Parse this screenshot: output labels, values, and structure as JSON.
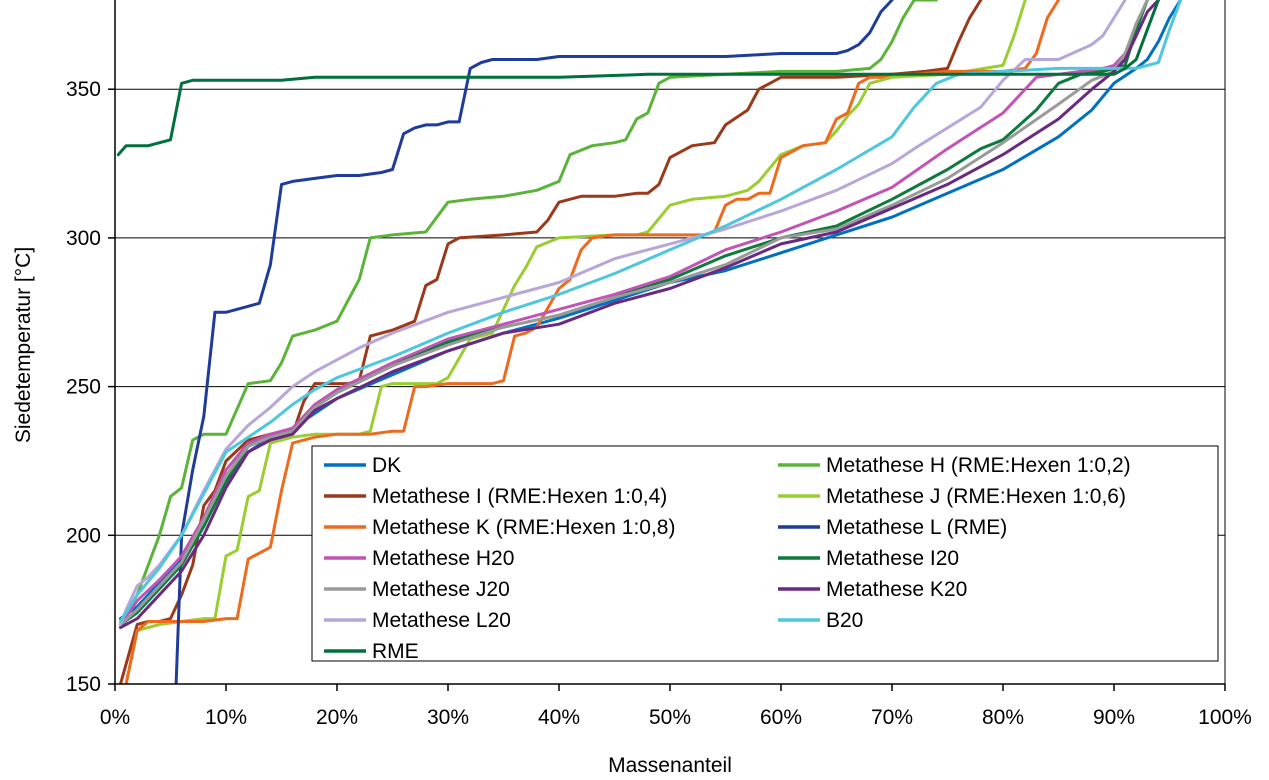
{
  "chart_data": {
    "type": "line",
    "title": "",
    "xlabel": "Massenanteil",
    "ylabel": "Siedetemperatur [°C]",
    "xlim": [
      0,
      100
    ],
    "ylim": [
      150,
      380
    ],
    "xticks": [
      0,
      10,
      20,
      30,
      40,
      50,
      60,
      70,
      80,
      90,
      100
    ],
    "xtick_labels": [
      "0%",
      "10%",
      "20%",
      "30%",
      "40%",
      "50%",
      "60%",
      "70%",
      "80%",
      "90%",
      "100%"
    ],
    "yticks": [
      150,
      200,
      250,
      300,
      350
    ],
    "ytick_labels": [
      "150",
      "200",
      "250",
      "300",
      "350"
    ],
    "grid": "horizontal",
    "legend_placement": "bottom-center",
    "series": [
      {
        "name": "DK",
        "color": "#0070c0",
        "x": [
          0.5,
          2,
          4,
          6,
          8,
          10,
          12,
          14,
          16,
          18,
          20,
          25,
          30,
          35,
          40,
          45,
          50,
          55,
          60,
          65,
          70,
          75,
          80,
          85,
          88,
          90,
          92,
          93,
          94,
          95,
          96
        ],
        "y": [
          172,
          176,
          184,
          192,
          204,
          218,
          228,
          233,
          236,
          241,
          246,
          254,
          262,
          268,
          273,
          279,
          285,
          289,
          295,
          301,
          307,
          315,
          323,
          334,
          343,
          352,
          357,
          360,
          366,
          374,
          380
        ]
      },
      {
        "name": "Metathese H (RME:Hexen 1:0,2)",
        "color": "#5bb33a",
        "x": [
          0.5,
          2,
          3,
          4,
          5,
          6,
          7,
          8,
          10,
          12,
          14,
          15,
          16,
          18,
          20,
          22,
          23,
          25,
          28,
          30,
          32,
          35,
          38,
          40,
          41,
          43,
          45,
          46,
          47,
          48,
          49,
          50,
          55,
          60,
          65,
          68,
          69,
          70,
          71,
          72,
          74
        ],
        "y": [
          170,
          180,
          190,
          200,
          213,
          216,
          232,
          234,
          234,
          251,
          252,
          258,
          267,
          269,
          272,
          286,
          300,
          301,
          302,
          312,
          313,
          314,
          316,
          319,
          328,
          331,
          332,
          333,
          340,
          342,
          352,
          354,
          355,
          356,
          356,
          357,
          360,
          366,
          374,
          380,
          380
        ]
      },
      {
        "name": "Metathese I (RME:Hexen 1:0,4)",
        "color": "#9a3a1a",
        "x": [
          0.5,
          2,
          3,
          4,
          5,
          6,
          7,
          8,
          9,
          10,
          12,
          14,
          16,
          17,
          18,
          20,
          21,
          22,
          23,
          25,
          27,
          28,
          29,
          30,
          31,
          35,
          38,
          39,
          40,
          42,
          45,
          47,
          48,
          49,
          50,
          52,
          54,
          55,
          57,
          58,
          59,
          60,
          65,
          70,
          73,
          75,
          76,
          77,
          78
        ],
        "y": [
          150,
          170,
          171,
          171,
          172,
          180,
          190,
          210,
          215,
          225,
          232,
          234,
          234,
          245,
          251,
          251,
          251,
          252,
          267,
          269,
          272,
          284,
          286,
          298,
          300,
          301,
          302,
          306,
          312,
          314,
          314,
          315,
          315,
          318,
          327,
          331,
          332,
          338,
          343,
          350,
          352,
          354,
          354,
          355,
          356,
          357,
          366,
          374,
          380
        ]
      },
      {
        "name": "Metathese J (RME:Hexen 1:0,6)",
        "color": "#9acd32",
        "x": [
          1,
          2,
          4,
          6,
          8,
          9,
          10,
          11,
          12,
          13,
          14,
          15,
          16,
          18,
          20,
          22,
          23,
          24,
          25,
          26,
          27,
          28,
          29,
          30,
          32,
          34,
          35,
          36,
          37,
          38,
          40,
          45,
          47,
          48,
          50,
          52,
          55,
          57,
          58,
          60,
          62,
          64,
          65,
          66,
          67,
          68,
          70,
          75,
          80,
          81,
          82
        ],
        "y": [
          150,
          168,
          170,
          171,
          172,
          172,
          193,
          195,
          213,
          215,
          231,
          232,
          233,
          234,
          234,
          234,
          235,
          250,
          251,
          251,
          251,
          251,
          251,
          253,
          266,
          268,
          276,
          284,
          290,
          297,
          300,
          301,
          301,
          302,
          311,
          313,
          314,
          316,
          319,
          328,
          331,
          332,
          336,
          341,
          345,
          352,
          354,
          355,
          358,
          368,
          380
        ]
      },
      {
        "name": "Metathese K (RME:Hexen 1:0,8)",
        "color": "#ee6a1e",
        "x": [
          1,
          2,
          3,
          5,
          8,
          10,
          11,
          12,
          14,
          15,
          16,
          18,
          20,
          23,
          25,
          26,
          27,
          28,
          30,
          32,
          34,
          35,
          36,
          37,
          38,
          40,
          41,
          42,
          43,
          45,
          48,
          50,
          53,
          54,
          55,
          56,
          57,
          58,
          59,
          60,
          62,
          64,
          65,
          66,
          67,
          68,
          69,
          70,
          72,
          75,
          80,
          82,
          83,
          84,
          85
        ],
        "y": [
          150,
          168,
          171,
          171,
          171,
          172,
          172,
          192,
          196,
          215,
          231,
          233,
          234,
          234,
          235,
          235,
          250,
          250,
          251,
          251,
          251,
          252,
          267,
          268,
          270,
          283,
          286,
          296,
          300,
          301,
          301,
          301,
          301,
          302,
          311,
          313,
          313,
          315,
          315,
          327,
          331,
          332,
          340,
          342,
          352,
          354,
          354,
          355,
          355,
          356,
          356,
          357,
          362,
          374,
          380
        ]
      },
      {
        "name": "Metathese L (RME)",
        "color": "#1f3c99",
        "x": [
          5.5,
          6,
          7,
          8,
          9,
          10,
          11,
          12,
          13,
          14,
          15,
          16,
          18,
          20,
          22,
          24,
          25,
          26,
          27,
          28,
          29,
          30,
          31,
          32,
          33,
          34,
          35,
          38,
          40,
          45,
          50,
          55,
          60,
          63,
          65,
          66,
          67,
          68,
          69,
          70
        ],
        "y": [
          150,
          200,
          222,
          240,
          275,
          275,
          276,
          277,
          278,
          291,
          318,
          319,
          320,
          321,
          321,
          322,
          323,
          335,
          337,
          338,
          338,
          339,
          339,
          357,
          359,
          360,
          360,
          360,
          361,
          361,
          361,
          361,
          362,
          362,
          362,
          363,
          365,
          369,
          376,
          380
        ]
      },
      {
        "name": "Metathese H20",
        "color": "#c154b4",
        "x": [
          0.5,
          2,
          4,
          6,
          8,
          10,
          12,
          14,
          16,
          18,
          20,
          25,
          30,
          35,
          40,
          45,
          50,
          55,
          60,
          65,
          70,
          75,
          80,
          83,
          85,
          87,
          89,
          90,
          91,
          92,
          93
        ],
        "y": [
          170,
          178,
          185,
          193,
          206,
          222,
          231,
          234,
          236,
          244,
          249,
          258,
          266,
          271,
          276,
          281,
          287,
          296,
          302,
          309,
          317,
          330,
          342,
          354,
          355,
          356,
          357,
          358,
          362,
          370,
          380
        ]
      },
      {
        "name": "Metathese I20",
        "color": "#0e7a3c",
        "x": [
          0.5,
          2,
          4,
          6,
          8,
          10,
          12,
          14,
          16,
          18,
          20,
          25,
          30,
          35,
          40,
          45,
          50,
          55,
          60,
          65,
          70,
          75,
          78,
          80,
          83,
          85,
          87,
          89,
          90,
          91,
          92,
          93
        ],
        "y": [
          170,
          174,
          182,
          190,
          203,
          218,
          230,
          233,
          235,
          243,
          248,
          257,
          265,
          270,
          274,
          280,
          286,
          294,
          300,
          304,
          313,
          323,
          330,
          333,
          343,
          352,
          355,
          356,
          357,
          358,
          370,
          380
        ]
      },
      {
        "name": "Metathese J20",
        "color": "#9a9a9a",
        "x": [
          0.5,
          2,
          4,
          6,
          8,
          10,
          12,
          14,
          16,
          18,
          20,
          25,
          30,
          35,
          40,
          45,
          50,
          55,
          60,
          65,
          70,
          75,
          80,
          85,
          88,
          90,
          91,
          92,
          93
        ],
        "y": [
          170,
          175,
          183,
          191,
          205,
          220,
          230,
          233,
          235,
          243,
          248,
          257,
          264,
          270,
          274,
          280,
          285,
          291,
          300,
          303,
          311,
          320,
          332,
          345,
          353,
          356,
          362,
          372,
          380
        ]
      },
      {
        "name": "Metathese K20",
        "color": "#6a2a80",
        "x": [
          0.5,
          2,
          4,
          6,
          8,
          10,
          12,
          14,
          16,
          18,
          20,
          25,
          30,
          35,
          40,
          45,
          50,
          55,
          60,
          65,
          70,
          75,
          80,
          85,
          88,
          90,
          91,
          92,
          93,
          94
        ],
        "y": [
          169,
          172,
          180,
          188,
          200,
          216,
          228,
          232,
          234,
          242,
          246,
          255,
          262,
          268,
          271,
          278,
          283,
          290,
          298,
          302,
          310,
          318,
          328,
          340,
          350,
          356,
          360,
          368,
          376,
          380
        ]
      },
      {
        "name": "Metathese L20",
        "color": "#b9a6d8",
        "x": [
          0.5,
          1,
          2,
          3,
          4,
          6,
          8,
          10,
          12,
          14,
          16,
          18,
          20,
          22,
          25,
          30,
          35,
          40,
          45,
          50,
          55,
          60,
          65,
          70,
          72,
          75,
          78,
          80,
          82,
          85,
          88,
          89,
          90,
          91
        ],
        "y": [
          170,
          175,
          183,
          186,
          190,
          200,
          215,
          229,
          237,
          243,
          250,
          255,
          259,
          263,
          268,
          275,
          280,
          285,
          293,
          298,
          303,
          309,
          316,
          325,
          330,
          337,
          344,
          353,
          360,
          360,
          365,
          368,
          374,
          380
        ]
      },
      {
        "name": "B20",
        "color": "#4ec7dc",
        "x": [
          0.5,
          2,
          4,
          6,
          8,
          10,
          12,
          14,
          16,
          18,
          20,
          25,
          30,
          35,
          40,
          45,
          50,
          55,
          60,
          65,
          70,
          72,
          74,
          76,
          80,
          85,
          88,
          90,
          92,
          94,
          95,
          96
        ],
        "y": [
          171,
          180,
          189,
          200,
          214,
          228,
          233,
          238,
          244,
          249,
          253,
          260,
          268,
          275,
          281,
          288,
          296,
          304,
          313,
          323,
          334,
          344,
          352,
          355,
          356,
          357,
          357,
          357,
          357,
          359,
          370,
          380
        ]
      },
      {
        "name": "RME",
        "color": "#00703c",
        "x": [
          0.3,
          1,
          3,
          5,
          6,
          7,
          10,
          15,
          18,
          20,
          30,
          40,
          48,
          50,
          60,
          70,
          80,
          90,
          91,
          92,
          93,
          94
        ],
        "y": [
          328,
          331,
          331,
          333,
          352,
          353,
          353,
          353,
          354,
          354,
          354,
          354,
          355,
          355,
          355,
          355,
          355,
          355,
          357,
          360,
          370,
          380
        ]
      }
    ]
  }
}
